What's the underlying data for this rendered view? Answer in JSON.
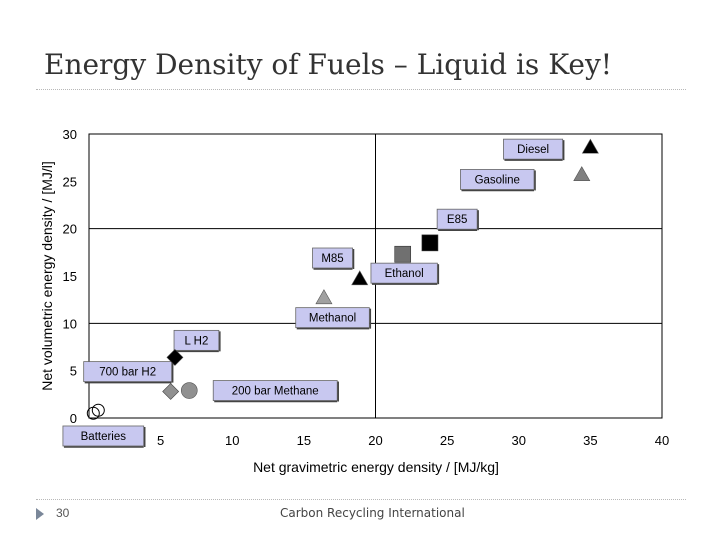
{
  "slide": {
    "title": "Energy Density of Fuels – Liquid is Key!",
    "page_number": "30",
    "organization": "Carbon Recycling International"
  },
  "chart_data": {
    "type": "scatter",
    "xlabel": "Net gravimetric energy density / [MJ/kg]",
    "ylabel": "Net volumetric energy density / [MJ/l]",
    "xlim": [
      0,
      40
    ],
    "ylim": [
      0,
      30
    ],
    "xticks": [
      0,
      5,
      10,
      15,
      20,
      25,
      30,
      35,
      40
    ],
    "yticks": [
      0,
      5,
      10,
      15,
      20,
      25,
      30
    ],
    "gridlines_x": [
      0,
      20,
      40
    ],
    "gridlines_y": [
      0,
      10,
      20,
      30
    ],
    "label_fill": "#c8c8f0",
    "points": [
      {
        "name": "Diesel",
        "x": 35.0,
        "y": 28.6,
        "marker": "triangle",
        "fill": "#000000",
        "label_at": [
          31,
          28.4
        ]
      },
      {
        "name": "Gasoline",
        "x": 34.4,
        "y": 25.7,
        "marker": "triangle",
        "fill": "#808080",
        "label_at": [
          28.5,
          25.2
        ]
      },
      {
        "name": "E85",
        "x": 23.8,
        "y": 18.5,
        "marker": "square",
        "fill": "#000000",
        "label_at": [
          25.7,
          21.0
        ]
      },
      {
        "name": "Ethanol",
        "x": 21.9,
        "y": 17.3,
        "marker": "square",
        "fill": "#707070",
        "label_at": [
          22.0,
          15.3
        ]
      },
      {
        "name": "M85",
        "x": 18.9,
        "y": 14.7,
        "marker": "triangle",
        "fill": "#000000",
        "label_at": [
          17.0,
          16.9
        ]
      },
      {
        "name": "Methanol",
        "x": 16.4,
        "y": 12.7,
        "marker": "triangle",
        "fill": "#a0a0a0",
        "label_at": [
          17.0,
          10.6
        ]
      },
      {
        "name": "L H2",
        "x": 6.0,
        "y": 6.4,
        "marker": "diamond",
        "fill": "#000000",
        "label_at": [
          7.5,
          8.2
        ]
      },
      {
        "name": "700 bar H2",
        "x": 0.0,
        "y": 0.0,
        "marker": "none",
        "fill": "none",
        "label_at": [
          2.7,
          4.9
        ]
      },
      {
        "name": "200 bar Methane",
        "x": 7.0,
        "y": 2.9,
        "marker": "circle",
        "fill": "#909090",
        "label_at": [
          13.0,
          2.9
        ]
      },
      {
        "name": "Batteries",
        "x": 0.3,
        "y": 0.5,
        "marker": "open-circles",
        "fill": "none",
        "label_at": [
          1.0,
          -1.9
        ]
      }
    ],
    "extra_markers": [
      {
        "name": "700 bar H2 marker",
        "x": 5.7,
        "y": 2.8,
        "marker": "diamond",
        "fill": "#909090"
      }
    ]
  }
}
